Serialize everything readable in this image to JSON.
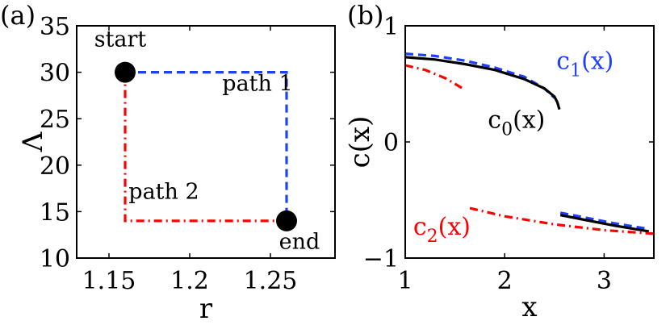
{
  "chart_data": [
    {
      "panel": "(a)",
      "type": "line",
      "xlabel": "r",
      "ylabel": "Λ",
      "xlim": [
        1.13,
        1.29
      ],
      "ylim": [
        10,
        35
      ],
      "xticks": [
        1.15,
        1.2,
        1.25
      ],
      "xtick_labels": [
        "1.15",
        "1.2",
        "1.25"
      ],
      "yticks": [
        10,
        15,
        20,
        25,
        30,
        35
      ],
      "ytick_labels": [
        "10",
        "15",
        "20",
        "25",
        "30",
        "35"
      ],
      "series": [
        {
          "name": "path 1",
          "color": "#1f3fff",
          "style": "dashed",
          "x": [
            1.16,
            1.26,
            1.26
          ],
          "y": [
            30,
            30,
            14
          ]
        },
        {
          "name": "path 2",
          "color": "#ff0000",
          "style": "dashdot",
          "x": [
            1.16,
            1.16,
            1.26
          ],
          "y": [
            30,
            14,
            14
          ]
        }
      ],
      "points": [
        {
          "name": "start",
          "x": 1.16,
          "y": 30,
          "color": "#000000"
        },
        {
          "name": "end",
          "x": 1.26,
          "y": 14,
          "color": "#000000"
        }
      ],
      "annotations": {
        "start": {
          "text": "start",
          "x": 1.157,
          "y": 32.8
        },
        "end": {
          "text": "end",
          "x": 1.268,
          "y": 11.0
        },
        "path1": {
          "text": "path 1",
          "x": 1.242,
          "y": 28.0
        },
        "path2": {
          "text": "path 2",
          "x": 1.184,
          "y": 16.4
        }
      }
    },
    {
      "panel": "(b)",
      "type": "line",
      "xlabel": "x",
      "ylabel": "c(x)",
      "xlim": [
        1,
        3.5
      ],
      "ylim": [
        -1,
        1
      ],
      "xticks": [
        1,
        2,
        3
      ],
      "xtick_labels": [
        "1",
        "2",
        "3"
      ],
      "yticks": [
        -1,
        0,
        1
      ],
      "ytick_labels": [
        "−1",
        "0",
        "1"
      ],
      "series": [
        {
          "label": "c_1(x)",
          "color": "#1f3fff",
          "style": "dashed",
          "segments": [
            {
              "x": [
                1.0,
                1.3,
                1.6,
                1.9,
                2.2,
                2.4,
                2.5
              ],
              "y": [
                0.76,
                0.74,
                0.7,
                0.64,
                0.56,
                0.46,
                0.38
              ]
            },
            {
              "x": [
                2.56,
                2.8,
                3.1,
                3.45
              ],
              "y": [
                -0.61,
                -0.65,
                -0.7,
                -0.75
              ]
            }
          ]
        },
        {
          "label": "c_0(x)",
          "color": "#000000",
          "style": "solid",
          "segments": [
            {
              "x": [
                1.0,
                1.3,
                1.6,
                1.9,
                2.2,
                2.4,
                2.5,
                2.53,
                2.55
              ],
              "y": [
                0.73,
                0.71,
                0.67,
                0.62,
                0.54,
                0.46,
                0.39,
                0.34,
                0.28
              ]
            },
            {
              "x": [
                2.56,
                2.8,
                3.1,
                3.45
              ],
              "y": [
                -0.63,
                -0.67,
                -0.72,
                -0.77
              ]
            }
          ]
        },
        {
          "label": "c_2(x)",
          "color": "#ff0000",
          "style": "dashdot",
          "segments": [
            {
              "x": [
                1.0,
                1.2,
                1.4,
                1.6
              ],
              "y": [
                0.66,
                0.62,
                0.55,
                0.45
              ]
            },
            {
              "x": [
                1.65,
                2.0,
                2.5,
                3.0,
                3.5
              ],
              "y": [
                -0.57,
                -0.64,
                -0.71,
                -0.76,
                -0.79
              ]
            }
          ]
        }
      ],
      "annotations": {
        "c1": {
          "base": "c",
          "sub": "1",
          "tail": "(x)",
          "color": "#1f3fff",
          "x": 2.52,
          "y": 0.63
        },
        "c0": {
          "base": "c",
          "sub": "0",
          "tail": "(x)",
          "color": "#000000",
          "x": 1.83,
          "y": 0.12
        },
        "c2": {
          "base": "c",
          "sub": "2",
          "tail": "(x)",
          "color": "#ff0000",
          "x": 1.08,
          "y": -0.8
        }
      }
    }
  ]
}
